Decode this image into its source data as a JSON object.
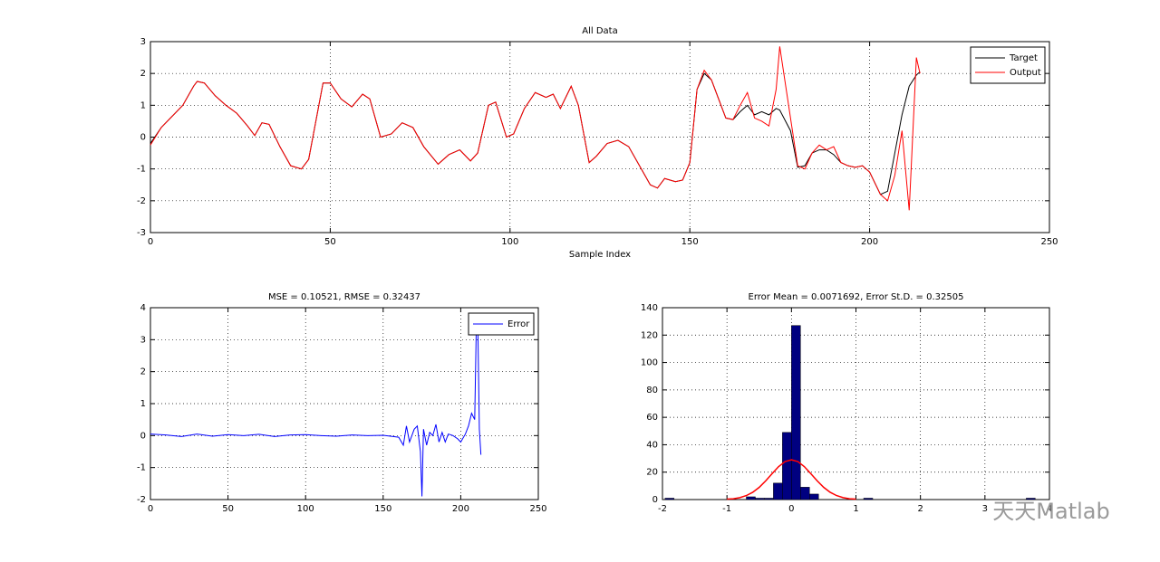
{
  "chart_data": [
    {
      "type": "line",
      "title": "All Data",
      "xlabel": "Sample Index",
      "grid": true,
      "legend": "upper right",
      "xlim": [
        0,
        250
      ],
      "xticks": [
        0,
        50,
        100,
        150,
        200,
        250
      ],
      "ylim": [
        -3,
        3
      ],
      "yticks": [
        -3,
        -2,
        -1,
        0,
        1,
        2,
        3
      ],
      "x": [
        0,
        3,
        6,
        9,
        12,
        13,
        15,
        18,
        21,
        24,
        27,
        29,
        31,
        33,
        36,
        39,
        42,
        44,
        46,
        48,
        50,
        53,
        56,
        59,
        61,
        64,
        67,
        70,
        73,
        76,
        80,
        83,
        86,
        89,
        91,
        94,
        96,
        99,
        101,
        104,
        107,
        110,
        112,
        114,
        117,
        119,
        122,
        124,
        127,
        130,
        133,
        136,
        139,
        141,
        143,
        146,
        148,
        150,
        152,
        154,
        156,
        158,
        160,
        162,
        164,
        166,
        168,
        170,
        172,
        174,
        175,
        178,
        180,
        182,
        184,
        186,
        188,
        190,
        192,
        194,
        196,
        198,
        200,
        203,
        205,
        207,
        209,
        211,
        213,
        214
      ],
      "series": [
        {
          "name": "Target",
          "color": "#000000",
          "values": [
            -0.2,
            0.3,
            0.65,
            1.0,
            1.6,
            1.75,
            1.7,
            1.3,
            1.0,
            0.75,
            0.35,
            0.05,
            0.45,
            0.4,
            -0.3,
            -0.9,
            -1.0,
            -0.7,
            0.5,
            1.7,
            1.7,
            1.2,
            0.95,
            1.35,
            1.2,
            0.0,
            0.1,
            0.45,
            0.3,
            -0.3,
            -0.85,
            -0.55,
            -0.4,
            -0.75,
            -0.5,
            1.0,
            1.1,
            0.0,
            0.1,
            0.9,
            1.4,
            1.25,
            1.35,
            0.9,
            1.6,
            1.0,
            -0.8,
            -0.6,
            -0.2,
            -0.1,
            -0.3,
            -0.9,
            -1.5,
            -1.6,
            -1.3,
            -1.4,
            -1.35,
            -0.8,
            1.5,
            2.0,
            1.8,
            1.2,
            0.6,
            0.55,
            0.8,
            1.0,
            0.7,
            0.8,
            0.7,
            0.9,
            0.85,
            0.2,
            -0.95,
            -0.9,
            -0.5,
            -0.4,
            -0.4,
            -0.55,
            -0.8,
            -0.9,
            -0.95,
            -0.9,
            -1.1,
            -1.8,
            -1.7,
            -0.5,
            0.7,
            1.6,
            1.95,
            2.05
          ]
        },
        {
          "name": "Output",
          "color": "#ff0000",
          "values": [
            -0.25,
            0.3,
            0.65,
            1.0,
            1.6,
            1.75,
            1.7,
            1.3,
            1.0,
            0.75,
            0.35,
            0.05,
            0.45,
            0.4,
            -0.3,
            -0.9,
            -1.0,
            -0.7,
            0.5,
            1.7,
            1.7,
            1.2,
            0.95,
            1.35,
            1.2,
            0.0,
            0.1,
            0.45,
            0.3,
            -0.3,
            -0.85,
            -0.55,
            -0.4,
            -0.75,
            -0.5,
            1.0,
            1.1,
            0.0,
            0.1,
            0.9,
            1.4,
            1.25,
            1.35,
            0.9,
            1.6,
            1.0,
            -0.8,
            -0.6,
            -0.2,
            -0.1,
            -0.3,
            -0.9,
            -1.5,
            -1.6,
            -1.3,
            -1.4,
            -1.35,
            -0.8,
            1.5,
            2.1,
            1.8,
            1.2,
            0.6,
            0.55,
            1.0,
            1.4,
            0.6,
            0.5,
            0.35,
            1.5,
            2.85,
            0.6,
            -0.9,
            -1.0,
            -0.5,
            -0.25,
            -0.4,
            -0.3,
            -0.8,
            -0.9,
            -0.95,
            -0.9,
            -1.1,
            -1.8,
            -2.0,
            -1.2,
            0.2,
            -2.3,
            2.5,
            2.0
          ]
        }
      ]
    },
    {
      "type": "line",
      "title": "MSE = 0.10521, RMSE = 0.32437",
      "grid": true,
      "legend": "upper right",
      "xlim": [
        0,
        250
      ],
      "xticks": [
        0,
        50,
        100,
        150,
        200,
        250
      ],
      "ylim": [
        -2,
        4
      ],
      "yticks": [
        -2,
        -1,
        0,
        1,
        2,
        3,
        4
      ],
      "x": [
        0,
        10,
        20,
        30,
        40,
        50,
        60,
        70,
        80,
        90,
        100,
        110,
        120,
        130,
        140,
        150,
        160,
        163,
        165,
        167,
        170,
        172,
        174,
        175,
        176,
        178,
        180,
        182,
        184,
        186,
        188,
        190,
        192,
        195,
        198,
        200,
        203,
        205,
        207,
        209,
        210,
        211,
        212,
        213
      ],
      "series": [
        {
          "name": "Error",
          "color": "#0000ff",
          "values": [
            0.05,
            0.02,
            -0.03,
            0.05,
            -0.02,
            0.03,
            0.0,
            0.04,
            -0.03,
            0.02,
            0.03,
            0.0,
            -0.02,
            0.02,
            0.0,
            0.01,
            -0.05,
            -0.3,
            0.3,
            -0.2,
            0.2,
            0.3,
            -0.5,
            -1.9,
            0.2,
            -0.3,
            0.1,
            0.0,
            0.35,
            -0.2,
            0.1,
            -0.2,
            0.05,
            0.0,
            -0.1,
            -0.2,
            0.05,
            0.3,
            0.7,
            0.5,
            3.3,
            3.5,
            0.2,
            -0.6
          ]
        }
      ]
    },
    {
      "type": "histogram",
      "title": "Error Mean = 0.0071692, Error St.D. = 0.32505",
      "grid": true,
      "xlim": [
        -2,
        4
      ],
      "xticks": [
        -2,
        -1,
        0,
        1,
        2,
        3,
        4
      ],
      "ylim": [
        0,
        140
      ],
      "yticks": [
        0,
        20,
        40,
        60,
        80,
        100,
        120,
        140
      ],
      "color": "#000080",
      "bins": [
        -1.96,
        -1.82,
        -1.68,
        -1.54,
        -1.4,
        -1.26,
        -1.12,
        -0.98,
        -0.84,
        -0.7,
        -0.56,
        -0.42,
        -0.28,
        -0.14,
        0,
        0.14,
        0.28,
        0.42,
        0.56,
        0.7,
        0.84,
        0.98,
        1.12,
        1.26,
        1.4,
        1.54,
        1.68,
        1.82,
        1.96,
        2.1,
        2.24,
        2.38,
        2.52,
        2.66,
        2.8,
        2.94,
        3.08,
        3.22,
        3.36,
        3.5,
        3.64,
        3.78
      ],
      "counts": [
        1,
        0,
        0,
        0,
        0,
        0,
        0,
        0,
        0,
        2,
        1,
        1,
        12,
        49,
        127,
        9,
        4,
        0,
        0,
        0,
        0,
        0,
        1,
        0,
        0,
        0,
        0,
        0,
        0,
        0,
        0,
        0,
        0,
        0,
        0,
        0,
        0,
        0,
        0,
        0,
        1
      ],
      "curve": {
        "color": "#ff0000",
        "x": [
          -1,
          -0.9,
          -0.8,
          -0.7,
          -0.6,
          -0.5,
          -0.4,
          -0.3,
          -0.2,
          -0.1,
          0,
          0.1,
          0.2,
          0.3,
          0.4,
          0.5,
          0.6,
          0.7,
          0.8,
          0.9,
          1
        ],
        "values": [
          0.3,
          0.6,
          1.4,
          2.9,
          5.3,
          8.9,
          13.6,
          18.9,
          24.0,
          27.7,
          29,
          27.7,
          24.0,
          18.9,
          13.6,
          8.9,
          5.3,
          2.9,
          1.4,
          0.6,
          0.3
        ]
      }
    }
  ],
  "watermark": "天天Matlab"
}
